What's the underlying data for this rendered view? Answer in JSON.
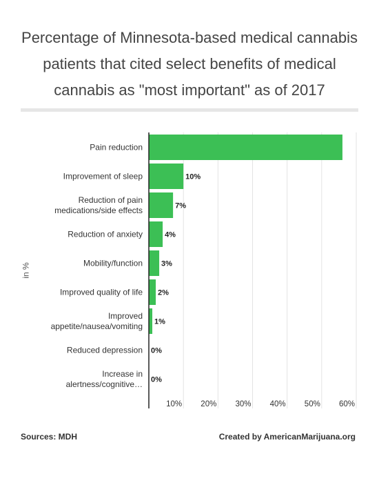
{
  "chart_data": {
    "type": "bar",
    "orientation": "horizontal",
    "title": "Percentage of Minnesota-based medical cannabis patients that cited select benefits of medical cannabis as \"most important\" as of 2017",
    "ylabel": "in %",
    "categories": [
      [
        "Pain reduction"
      ],
      [
        "Improvement of sleep"
      ],
      [
        "Reduction of pain",
        "medications/side effects"
      ],
      [
        "Reduction of anxiety"
      ],
      [
        "Mobility/function"
      ],
      [
        "Improved quality of life"
      ],
      [
        "Improved",
        "appetite/nausea/vomiting"
      ],
      [
        "Reduced depression"
      ],
      [
        "Increase in",
        "alertness/cognitive…"
      ]
    ],
    "values": [
      56,
      10,
      7,
      4,
      3,
      2,
      1,
      0,
      0
    ],
    "value_labels": [
      "",
      "10%",
      "7%",
      "4%",
      "3%",
      "2%",
      "1%",
      "0%",
      "0%"
    ],
    "xlim": [
      0,
      60
    ],
    "ticks": [
      10,
      20,
      30,
      40,
      50,
      60
    ],
    "tick_labels": [
      "10%",
      "20%",
      "30%",
      "40%",
      "50%",
      "60%"
    ],
    "bar_color": "#3cbf55",
    "grid": true
  },
  "footer": {
    "source": "Sources: MDH",
    "credit": "Created by AmericanMarijuana.org"
  }
}
